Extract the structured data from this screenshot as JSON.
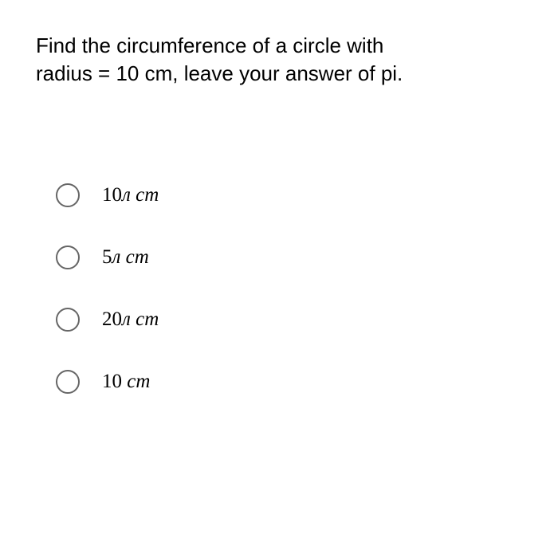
{
  "question": {
    "line1": "Find the circumference of a circle with",
    "line2": "radius = 10 cm, leave your answer of pi."
  },
  "options": [
    {
      "number": "10",
      "symbol": "л",
      "unit": "cm"
    },
    {
      "number": "5",
      "symbol": "л",
      "unit": "cm"
    },
    {
      "number": "20",
      "symbol": "л",
      "unit": "cm"
    },
    {
      "number": "10",
      "symbol": "",
      "unit": "cm"
    }
  ],
  "styling": {
    "background_color": "#ffffff",
    "question_fontsize": 26,
    "question_color": "#000000",
    "question_font": "Arial",
    "option_fontsize": 25,
    "option_font": "Times New Roman",
    "option_style": "italic",
    "radio_border_color": "#666666",
    "radio_size": 30,
    "option_gap": 48
  }
}
